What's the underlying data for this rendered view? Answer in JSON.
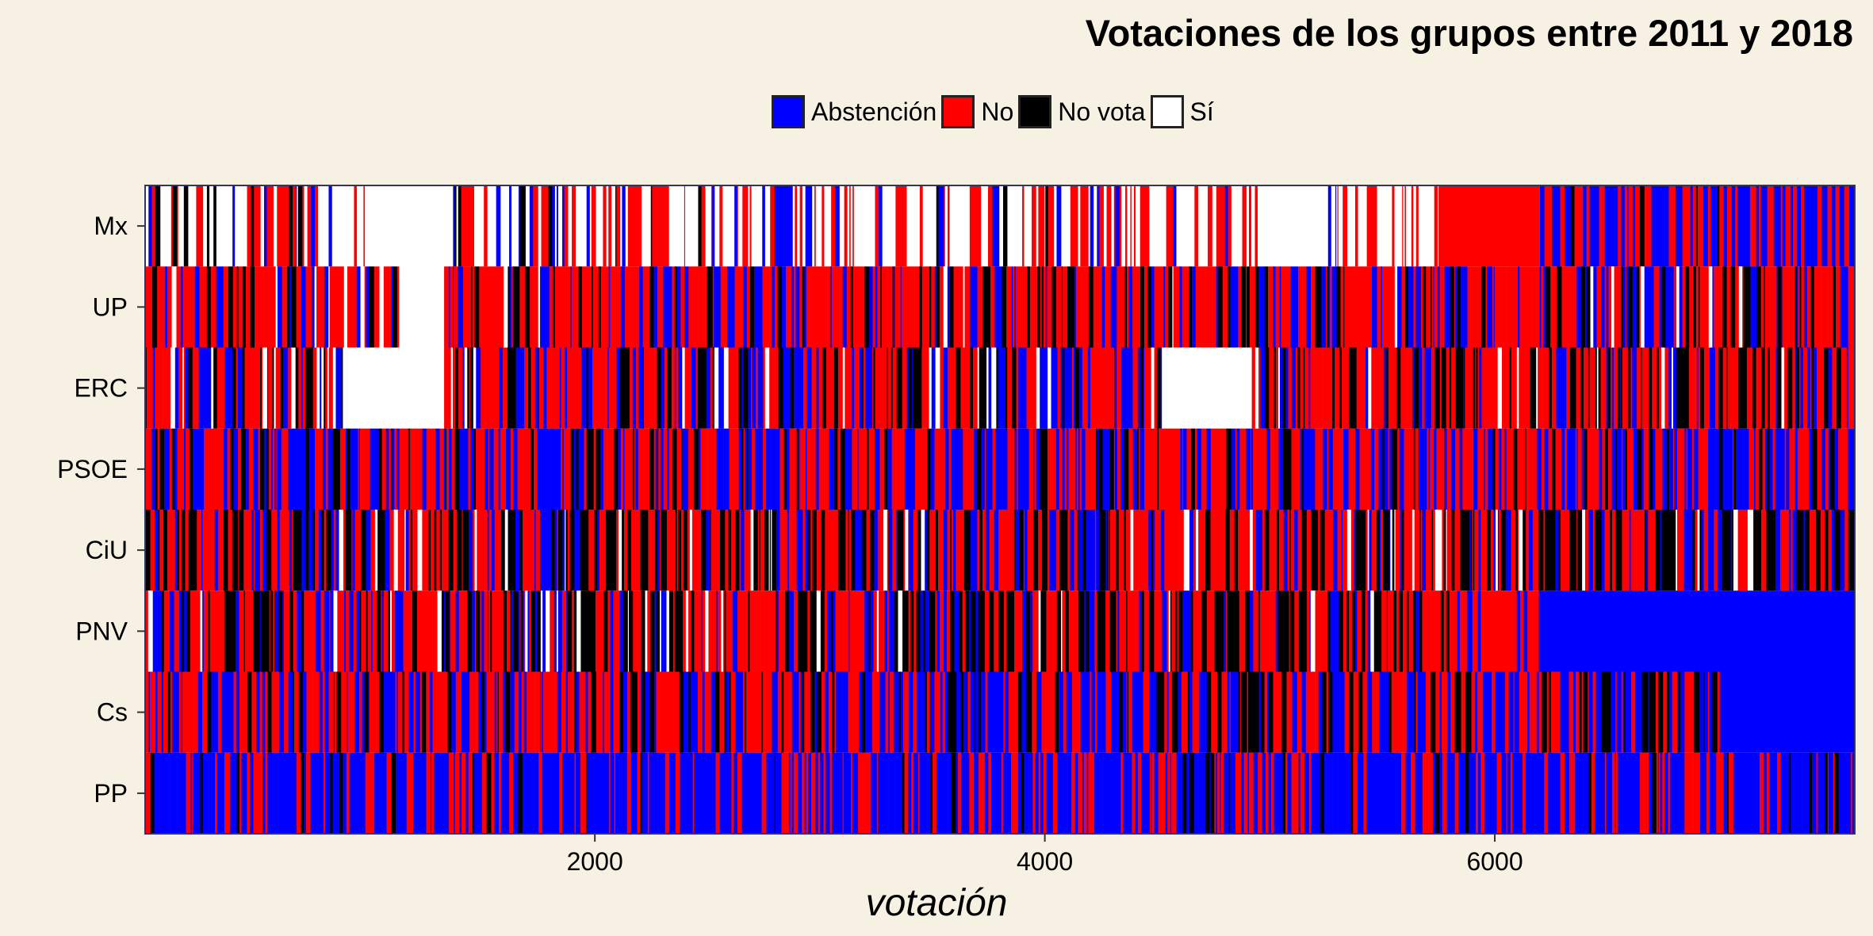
{
  "chart_data": {
    "type": "heatmap",
    "title": "Votaciones de los grupos entre 2011 y 2018",
    "xlabel": "votación",
    "ylabel": "",
    "xlim": [
      1,
      7600
    ],
    "x_ticks": [
      "2000",
      "4000",
      "6000"
    ],
    "x_tick_values": [
      2000,
      4000,
      6000
    ],
    "y_categories": [
      "Mx",
      "UP",
      "ERC",
      "PSOE",
      "CiU",
      "PNV",
      "Cs",
      "PP"
    ],
    "legend": {
      "placement": "top",
      "entries": [
        {
          "label": "Abstención",
          "color": "#0000ff"
        },
        {
          "label": "No",
          "color": "#ff0000"
        },
        {
          "label": "No vota",
          "color": "#000000"
        },
        {
          "label": "Sí",
          "color": "#ffffff"
        }
      ]
    },
    "segments": {
      "Mx": [
        {
          "from": 1,
          "to": 700,
          "vote": "mixed",
          "mix": {
            "Sí": 0.45,
            "No": 0.35,
            "No vota": 0.1,
            "Abstención": 0.1
          }
        },
        {
          "from": 700,
          "to": 1050,
          "vote": "mixed",
          "mix": {
            "Sí": 0.75,
            "No": 0.15,
            "Abstención": 0.1
          }
        },
        {
          "from": 1050,
          "to": 1350,
          "vote": "Sí"
        },
        {
          "from": 1350,
          "to": 2800,
          "vote": "mixed",
          "mix": {
            "Sí": 0.5,
            "No": 0.35,
            "Abstención": 0.1,
            "No vota": 0.05
          }
        },
        {
          "from": 2800,
          "to": 2880,
          "vote": "Abstención"
        },
        {
          "from": 2880,
          "to": 4950,
          "vote": "mixed",
          "mix": {
            "Sí": 0.5,
            "No": 0.35,
            "Abstención": 0.12,
            "No vota": 0.03
          }
        },
        {
          "from": 4950,
          "to": 5200,
          "vote": "Sí"
        },
        {
          "from": 5200,
          "to": 5750,
          "vote": "mixed",
          "mix": {
            "Sí": 0.6,
            "No": 0.3,
            "Abstención": 0.1
          }
        },
        {
          "from": 5750,
          "to": 6200,
          "vote": "No"
        },
        {
          "from": 6200,
          "to": 7600,
          "vote": "mixed",
          "mix": {
            "Abstención": 0.55,
            "No": 0.4,
            "No vota": 0.05
          }
        }
      ],
      "UP": [
        {
          "from": 1,
          "to": 1130,
          "vote": "mixed",
          "mix": {
            "No": 0.55,
            "Abstención": 0.2,
            "No vota": 0.15,
            "Sí": 0.1
          }
        },
        {
          "from": 1130,
          "to": 1330,
          "vote": "Sí"
        },
        {
          "from": 1330,
          "to": 7600,
          "vote": "mixed",
          "mix": {
            "No": 0.6,
            "Abstención": 0.22,
            "No vota": 0.15,
            "Sí": 0.03
          }
        }
      ],
      "ERC": [
        {
          "from": 1,
          "to": 880,
          "vote": "mixed",
          "mix": {
            "No": 0.5,
            "Abstención": 0.25,
            "No vota": 0.15,
            "Sí": 0.1
          }
        },
        {
          "from": 880,
          "to": 1330,
          "vote": "Sí"
        },
        {
          "from": 1330,
          "to": 4520,
          "vote": "mixed",
          "mix": {
            "No": 0.45,
            "Abstención": 0.3,
            "No vota": 0.18,
            "Sí": 0.07
          }
        },
        {
          "from": 4520,
          "to": 4920,
          "vote": "Sí"
        },
        {
          "from": 4920,
          "to": 7600,
          "vote": "mixed",
          "mix": {
            "No": 0.55,
            "Abstención": 0.2,
            "No vota": 0.2,
            "Sí": 0.05
          }
        }
      ],
      "PSOE": [
        {
          "from": 1,
          "to": 7600,
          "vote": "mixed",
          "mix": {
            "No": 0.5,
            "Abstención": 0.35,
            "No vota": 0.15
          }
        }
      ],
      "CiU": [
        {
          "from": 1,
          "to": 7600,
          "vote": "mixed",
          "mix": {
            "No": 0.45,
            "No vota": 0.3,
            "Abstención": 0.2,
            "Sí": 0.05
          }
        }
      ],
      "PNV": [
        {
          "from": 1,
          "to": 5800,
          "vote": "mixed",
          "mix": {
            "No": 0.4,
            "No vota": 0.35,
            "Abstención": 0.2,
            "Sí": 0.05
          }
        },
        {
          "from": 5800,
          "to": 6200,
          "vote": "mixed",
          "mix": {
            "No": 0.8,
            "Abstención": 0.2
          }
        },
        {
          "from": 6200,
          "to": 7600,
          "vote": "Abstención"
        }
      ],
      "Cs": [
        {
          "from": 1,
          "to": 7000,
          "vote": "mixed",
          "mix": {
            "No": 0.45,
            "Abstención": 0.35,
            "No vota": 0.2
          }
        },
        {
          "from": 7000,
          "to": 7600,
          "vote": "Abstención"
        }
      ],
      "PP": [
        {
          "from": 1,
          "to": 7600,
          "vote": "mixed",
          "mix": {
            "Abstención": 0.7,
            "No": 0.25,
            "No vota": 0.05
          }
        }
      ]
    }
  }
}
